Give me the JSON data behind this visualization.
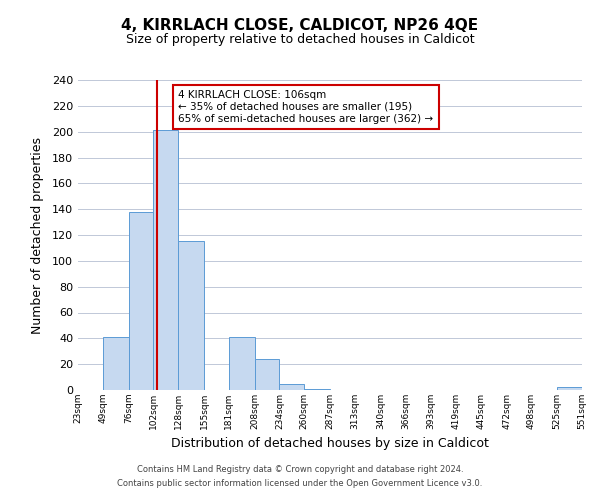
{
  "title": "4, KIRRLACH CLOSE, CALDICOT, NP26 4QE",
  "subtitle": "Size of property relative to detached houses in Caldicot",
  "xlabel": "Distribution of detached houses by size in Caldicot",
  "ylabel": "Number of detached properties",
  "bar_edges": [
    23,
    49,
    76,
    102,
    128,
    155,
    181,
    208,
    234,
    260,
    287,
    313,
    340,
    366,
    393,
    419,
    445,
    472,
    498,
    525,
    551
  ],
  "bar_heights": [
    0,
    41,
    138,
    201,
    115,
    0,
    41,
    24,
    5,
    1,
    0,
    0,
    0,
    0,
    0,
    0,
    0,
    0,
    0,
    2
  ],
  "bar_color": "#c6d9f0",
  "bar_edge_color": "#5b9bd5",
  "reference_line_x": 106,
  "reference_line_color": "#cc0000",
  "ylim": [
    0,
    240
  ],
  "yticks": [
    0,
    20,
    40,
    60,
    80,
    100,
    120,
    140,
    160,
    180,
    200,
    220,
    240
  ],
  "x_tick_labels": [
    "23sqm",
    "49sqm",
    "76sqm",
    "102sqm",
    "128sqm",
    "155sqm",
    "181sqm",
    "208sqm",
    "234sqm",
    "260sqm",
    "287sqm",
    "313sqm",
    "340sqm",
    "366sqm",
    "393sqm",
    "419sqm",
    "445sqm",
    "472sqm",
    "498sqm",
    "525sqm",
    "551sqm"
  ],
  "annotation_text": "4 KIRRLACH CLOSE: 106sqm\n← 35% of detached houses are smaller (195)\n65% of semi-detached houses are larger (362) →",
  "footer_line1": "Contains HM Land Registry data © Crown copyright and database right 2024.",
  "footer_line2": "Contains public sector information licensed under the Open Government Licence v3.0.",
  "bg_color": "#ffffff",
  "grid_color": "#c0c8d8",
  "title_fontsize": 11,
  "subtitle_fontsize": 9
}
